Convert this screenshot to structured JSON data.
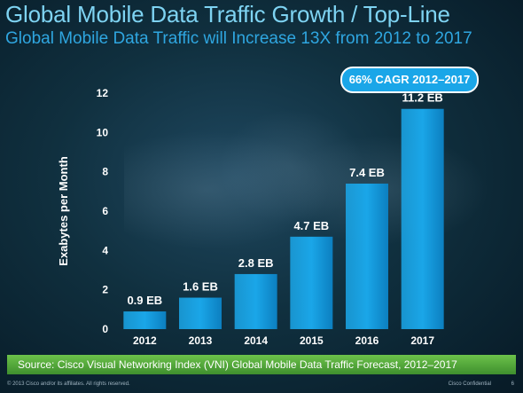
{
  "title": "Global Mobile Data Traffic Growth / Top-Line",
  "subtitle": "Global Mobile Data Traffic will Increase 13X from 2012 to 2017",
  "badge": "66% CAGR 2012–2017",
  "source": "Source: Cisco Visual Networking Index (VNI) Global Mobile Data Traffic Forecast, 2012–2017",
  "footer": {
    "copyright": "© 2013 Cisco and/or its affiliates. All rights reserved.",
    "confidential": "Cisco Confidential",
    "page": "6"
  },
  "colors": {
    "bar": "#1aa6e8",
    "title": "#7ed3f2",
    "subtitle": "#2fa6e0",
    "source_bar": "#5fb043"
  },
  "chart_data": {
    "type": "bar",
    "categories": [
      "2012",
      "2013",
      "2014",
      "2015",
      "2016",
      "2017"
    ],
    "values": [
      0.9,
      1.6,
      2.8,
      4.7,
      7.4,
      11.2
    ],
    "data_labels": [
      "0.9 EB",
      "1.6 EB",
      "2.8 EB",
      "4.7 EB",
      "7.4 EB",
      "11.2 EB"
    ],
    "ylabel": "Exabytes per Month",
    "xlabel": "",
    "ylim": [
      0,
      12
    ],
    "yticks": [
      "0",
      "2",
      "4",
      "6",
      "8",
      "10",
      "12"
    ],
    "grid": false,
    "legend": "none"
  }
}
